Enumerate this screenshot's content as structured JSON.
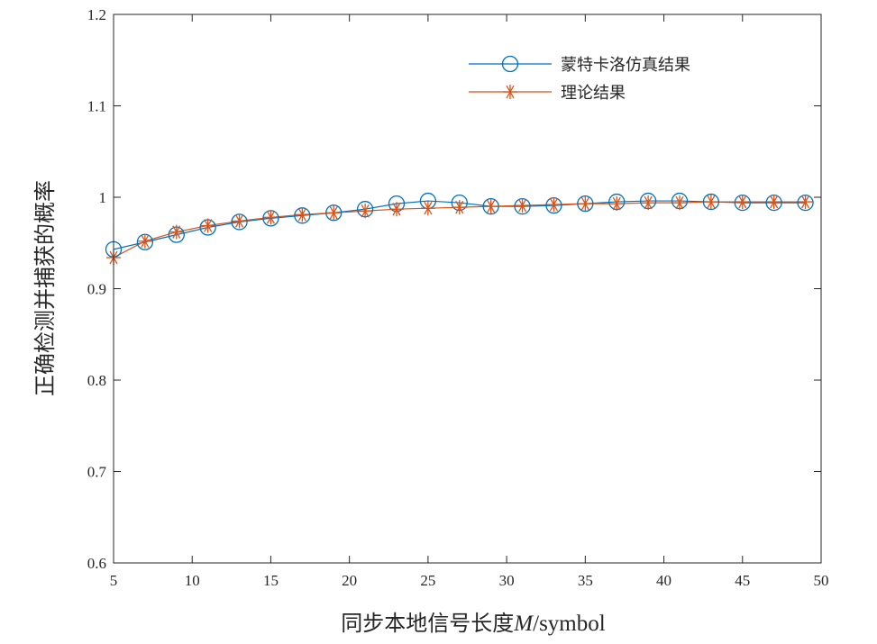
{
  "chart_data": {
    "type": "line",
    "x": [
      5,
      7,
      9,
      11,
      13,
      15,
      17,
      19,
      21,
      23,
      25,
      27,
      29,
      31,
      33,
      35,
      37,
      39,
      41,
      43,
      45,
      47,
      49
    ],
    "series": [
      {
        "name": "蒙特卡洛仿真结果",
        "color": "#0072BD",
        "marker": "circle",
        "values": [
          0.943,
          0.951,
          0.959,
          0.967,
          0.973,
          0.977,
          0.98,
          0.983,
          0.987,
          0.993,
          0.996,
          0.994,
          0.99,
          0.99,
          0.991,
          0.993,
          0.995,
          0.996,
          0.996,
          0.995,
          0.994,
          0.994,
          0.994
        ]
      },
      {
        "name": "理论结果",
        "color": "#D95319",
        "marker": "asterisk",
        "values": [
          0.934,
          0.952,
          0.962,
          0.969,
          0.974,
          0.978,
          0.981,
          0.983,
          0.985,
          0.987,
          0.988,
          0.989,
          0.99,
          0.991,
          0.992,
          0.993,
          0.993,
          0.994,
          0.994,
          0.995,
          0.995,
          0.995,
          0.995
        ]
      }
    ],
    "xlabel": {
      "prefix": "同步本地信号长度",
      "var": "M",
      "suffix": "/symbol"
    },
    "ylabel": "正确检测并捕获的概率",
    "xlim": [
      5,
      50
    ],
    "ylim": [
      0.6,
      1.2
    ],
    "xticks": [
      5,
      10,
      15,
      20,
      25,
      30,
      35,
      40,
      45,
      50
    ],
    "yticks": [
      0.6,
      0.7,
      0.8,
      0.9,
      1,
      1.1,
      1.2
    ],
    "ytick_labels": [
      "0.6",
      "0.7",
      "0.8",
      "0.9",
      "1",
      "1.1",
      "1.2"
    ],
    "grid": false,
    "legend_position": "top-right"
  }
}
